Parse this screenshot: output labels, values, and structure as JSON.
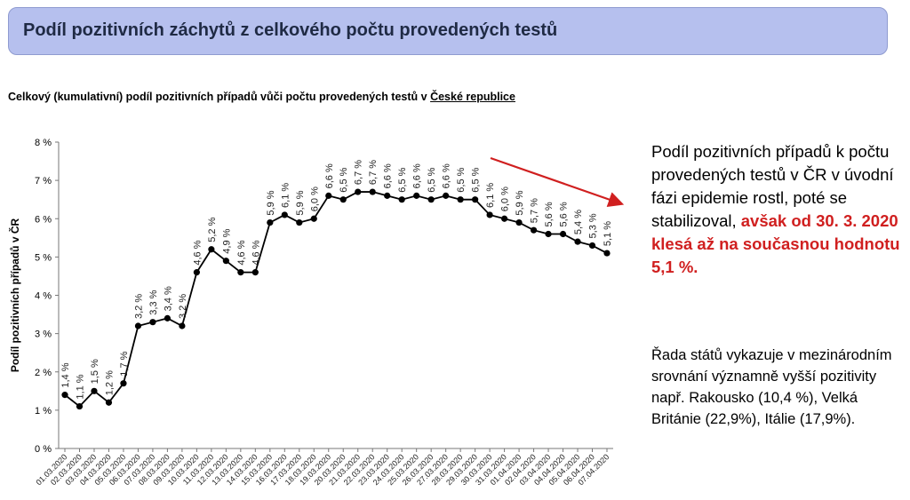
{
  "header": {
    "title": "Podíl pozitivních záchytů z celkového počtu provedených testů"
  },
  "subtitle": {
    "text": "Celkový (kumulativní) podíl pozitivních případů vůči počtu provedených testů v ",
    "link": "České republice"
  },
  "side": {
    "text": "Podíl pozitivních případů k počtu provedených testů v ČR v úvodní fázi epidemie rostl, poté se stabilizoval, ",
    "highlight": "avšak od 30. 3. 2020 klesá až na současnou hodnotu 5,1 %.",
    "note": "Řada států vykazuje v mezinárodním srovnání významně vyšší pozitivity např. Rakousko (10,4 %), Velká Británie (22,9%), Itálie (17,9%)."
  },
  "colors": {
    "line": "#000000",
    "arrow": "#d01f1f"
  },
  "chart_data": {
    "type": "line",
    "title": "",
    "xlabel": "",
    "ylabel": "Podíl pozitivních případů v ČR",
    "ylim": [
      0,
      8
    ],
    "yticks": [
      "0 %",
      "1 %",
      "2 %",
      "3 %",
      "4 %",
      "5 %",
      "6 %",
      "7 %",
      "8 %"
    ],
    "categories": [
      "01.03.2020",
      "02.03.2020",
      "03.03.2020",
      "04.03.2020",
      "05.03.2020",
      "06.03.2020",
      "07.03.2020",
      "08.03.2020",
      "09.03.2020",
      "10.03.2020",
      "11.03.2020",
      "12.03.2020",
      "13.03.2020",
      "14.03.2020",
      "15.03.2020",
      "16.03.2020",
      "17.03.2020",
      "18.03.2020",
      "19.03.2020",
      "20.03.2020",
      "21.03.2020",
      "22.03.2020",
      "23.03.2020",
      "24.03.2020",
      "25.03.2020",
      "26.03.2020",
      "27.03.2020",
      "28.03.2020",
      "29.03.2020",
      "30.03.2020",
      "31.03.2020",
      "01.04.2020",
      "02.04.2020",
      "03.04.2020",
      "04.04.2020",
      "05.04.2020",
      "06.04.2020",
      "07.04.2020"
    ],
    "values": [
      1.4,
      1.1,
      1.5,
      1.2,
      1.7,
      3.2,
      3.3,
      3.4,
      3.2,
      4.6,
      5.2,
      4.9,
      4.6,
      4.6,
      5.9,
      6.1,
      5.9,
      6.0,
      6.6,
      6.5,
      6.7,
      6.7,
      6.6,
      6.5,
      6.6,
      6.5,
      6.6,
      6.5,
      6.5,
      6.1,
      6.0,
      5.9,
      5.7,
      5.6,
      5.6,
      5.4,
      5.3,
      5.1
    ],
    "labels": [
      "1,4 %",
      "1,1 %",
      "1,5 %",
      "1,2 %",
      "1,7 %",
      "3,2 %",
      "3,3 %",
      "3,4 %",
      "3,2 %",
      "4,6 %",
      "5,2 %",
      "4,9 %",
      "4,6 %",
      "4,6 %",
      "5,9 %",
      "6,1 %",
      "5,9 %",
      "6,0 %",
      "6,6 %",
      "6,5 %",
      "6,7 %",
      "6,7 %",
      "6,6 %",
      "6,5 %",
      "6,6 %",
      "6,5 %",
      "6,6 %",
      "6,5 %",
      "6,5 %",
      "6,1 %",
      "6,0 %",
      "5,9 %",
      "5,7 %",
      "5,6 %",
      "5,6 %",
      "5,4 %",
      "5,3 %",
      "5,1 %"
    ],
    "grid": false,
    "annotations": [
      "downward trend arrow from 30.03.2020"
    ]
  }
}
